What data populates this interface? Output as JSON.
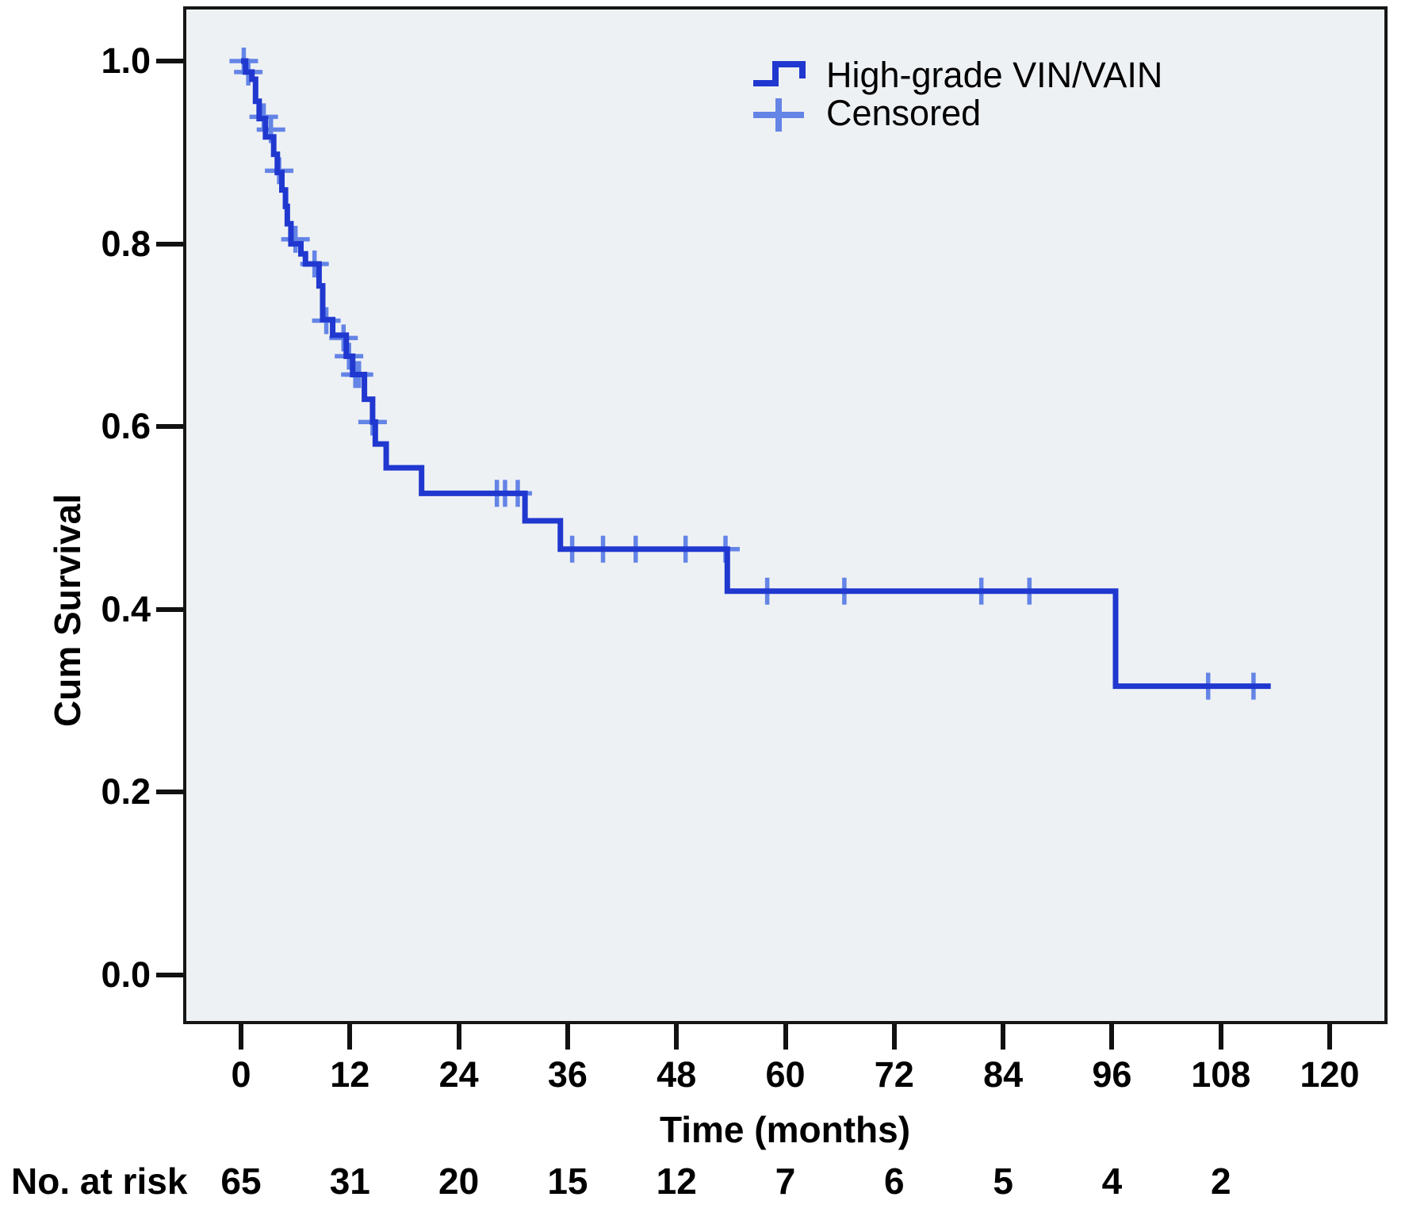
{
  "legend": {
    "series_label": "High-grade VIN/VAIN",
    "censored_label": "Censored"
  },
  "colors": {
    "curve": "#2038cf",
    "censored": "#6484e6",
    "plot_bg": "#eef1f4",
    "border": "#161616",
    "text": "#000000"
  },
  "chart_data": {
    "type": "line",
    "subtype": "kaplan_meier_step",
    "title": "",
    "xlabel": "Time (months)",
    "ylabel": "Cum Survival",
    "xlim": [
      -6.4,
      126.4
    ],
    "ylim": [
      -0.05,
      1.06
    ],
    "grid": false,
    "legend_position": "top-right-inside",
    "x_axis": {
      "tick_values": [
        0,
        12,
        24,
        36,
        48,
        60,
        72,
        84,
        96,
        108,
        120
      ],
      "tick_labels": [
        "0",
        "12",
        "24",
        "36",
        "48",
        "60",
        "72",
        "84",
        "96",
        "108",
        "120"
      ]
    },
    "y_axis": {
      "tick_values": [
        1.0,
        0.8,
        0.6,
        0.4,
        0.2,
        0.0
      ],
      "tick_labels": [
        "1.0",
        "0.8",
        "0.6",
        "0.4",
        "0.2",
        "0.0"
      ]
    },
    "series": [
      {
        "name": "High-grade VIN/VAIN",
        "type": "step",
        "color": "#2038cf",
        "steps": [
          [
            0,
            1.0
          ],
          [
            0.5,
            0.988
          ],
          [
            1.2,
            0.98
          ],
          [
            1.6,
            0.956
          ],
          [
            2.0,
            0.937
          ],
          [
            2.7,
            0.917
          ],
          [
            3.6,
            0.898
          ],
          [
            4.0,
            0.878
          ],
          [
            4.5,
            0.859
          ],
          [
            4.9,
            0.841
          ],
          [
            5.1,
            0.822
          ],
          [
            5.5,
            0.8
          ],
          [
            6.6,
            0.789
          ],
          [
            7.1,
            0.778
          ],
          [
            8.6,
            0.754
          ],
          [
            9.0,
            0.717
          ],
          [
            10.1,
            0.7
          ],
          [
            11.6,
            0.677
          ],
          [
            12.3,
            0.657
          ],
          [
            13.6,
            0.63
          ],
          [
            14.5,
            0.605
          ],
          [
            14.8,
            0.581
          ],
          [
            16.0,
            0.555
          ],
          [
            19.9,
            0.527
          ],
          [
            31.3,
            0.497
          ],
          [
            35.2,
            0.466
          ],
          [
            53.6,
            0.42
          ],
          [
            96.4,
            0.316
          ]
        ],
        "end_time": 113.5
      }
    ],
    "censored_points": [
      [
        0.3,
        1.0
      ],
      [
        0.8,
        0.988
      ],
      [
        2.5,
        0.939
      ],
      [
        3.3,
        0.925
      ],
      [
        4.2,
        0.88
      ],
      [
        6.0,
        0.805
      ],
      [
        8.1,
        0.778
      ],
      [
        9.4,
        0.716
      ],
      [
        11.3,
        0.697
      ],
      [
        11.9,
        0.677
      ],
      [
        12.6,
        0.657
      ],
      [
        13.0,
        0.657
      ],
      [
        14.5,
        0.605
      ],
      [
        28.2,
        0.527
      ],
      [
        29.1,
        0.527
      ],
      [
        30.5,
        0.527
      ],
      [
        36.5,
        0.466
      ],
      [
        39.9,
        0.466
      ],
      [
        43.5,
        0.466
      ],
      [
        49.0,
        0.466
      ],
      [
        53.4,
        0.466
      ],
      [
        58.0,
        0.42
      ],
      [
        66.5,
        0.42
      ],
      [
        81.6,
        0.42
      ],
      [
        86.9,
        0.42
      ],
      [
        106.6,
        0.316
      ],
      [
        111.6,
        0.316
      ]
    ],
    "no_at_risk": {
      "label": "No. at risk",
      "times": [
        0,
        12,
        24,
        36,
        48,
        60,
        72,
        84,
        96,
        108
      ],
      "counts": [
        65,
        31,
        20,
        15,
        12,
        7,
        6,
        5,
        4,
        2
      ]
    }
  }
}
